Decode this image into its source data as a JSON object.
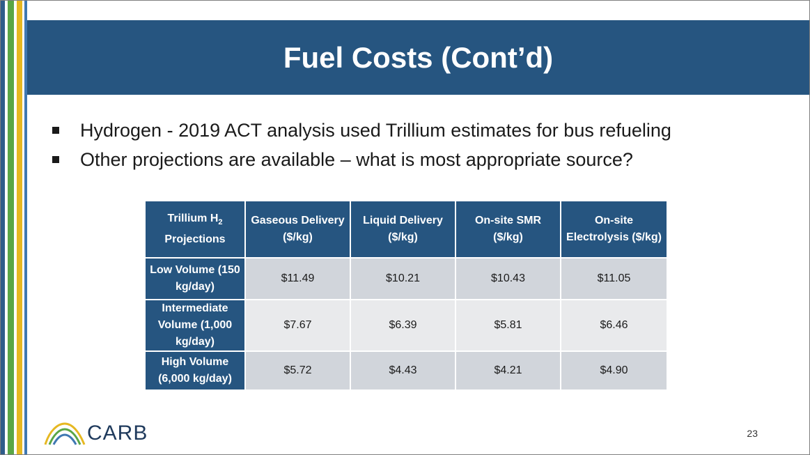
{
  "slide": {
    "title": "Fuel Costs (Cont’d)",
    "bullets": [
      "Hydrogen - 2019 ACT analysis used Trillium estimates for bus refueling",
      "Other projections are available – what is most appropriate source?"
    ],
    "page_number": "23"
  },
  "table": {
    "corner_header_main": "Trillium H",
    "corner_header_sub": "2",
    "corner_header_rest": "Projections",
    "column_headers": [
      "Gaseous Delivery ($/kg)",
      "Liquid Delivery ($/kg)",
      "On-site SMR ($/kg)",
      "On-site Electrolysis ($/kg)"
    ],
    "rows": [
      {
        "label": "Low Volume (150 kg/day)",
        "values": [
          "$11.49",
          "$10.21",
          "$10.43",
          "$11.05"
        ]
      },
      {
        "label": "Intermediate Volume (1,000 kg/day)",
        "values": [
          "$7.67",
          "$6.39",
          "$5.81",
          "$6.46"
        ]
      },
      {
        "label": "High Volume (6,000 kg/day)",
        "values": [
          "$5.72",
          "$4.43",
          "$4.21",
          "$4.90"
        ]
      }
    ]
  },
  "logo": {
    "text": "CARB",
    "icon": "carb-logo-icon",
    "colors": [
      "#e6b822",
      "#5aa646",
      "#3f78b2"
    ]
  },
  "colors": {
    "title_bar": "#265580",
    "header_cell": "#265580",
    "row_dark": "#d1d5db",
    "row_light": "#e9eaec"
  }
}
